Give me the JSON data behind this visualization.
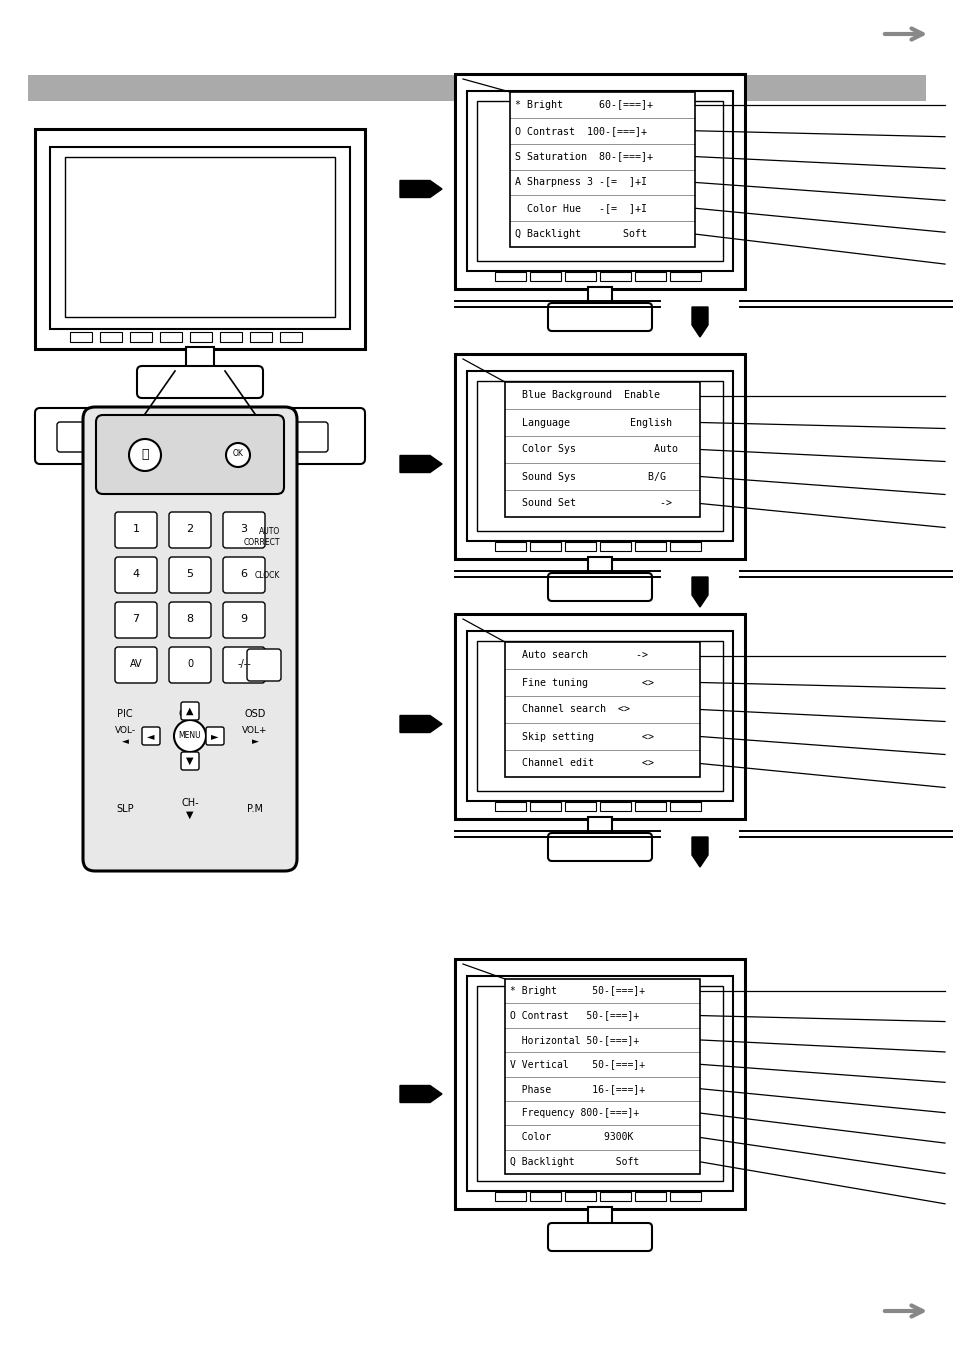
{
  "bg_color": "#ffffff",
  "header_bar_color": "#aaaaaa",
  "menu1_items": [
    "* Bright      60-[===]+",
    "O Contrast  100-[===]+",
    "S Saturation  80-[===]+",
    "A Sharpness 3 -[=  ]+I",
    "  Color Hue   -[=  ]+I",
    "Q Backlight       Soft"
  ],
  "menu2_items": [
    "  Blue Background  Enable",
    "  Language          English",
    "  Color Sys             Auto",
    "  Sound Sys            B/G",
    "  Sound Set              ->"
  ],
  "menu3_items": [
    "  Auto search        ->",
    "  Fine tuning         <>",
    "  Channel search  <>",
    "  Skip setting        <>",
    "  Channel edit        <>"
  ],
  "menu4_items": [
    "* Bright      50-[===]+",
    "O Contrast   50-[===]+",
    "  Horizontal 50-[===]+",
    "V Vertical    50-[===]+",
    "  Phase       16-[===]+",
    "  Frequency 800-[===]+",
    "  Color         9300K",
    "Q Backlight       Soft"
  ],
  "nav_arrow_color": "#888888"
}
